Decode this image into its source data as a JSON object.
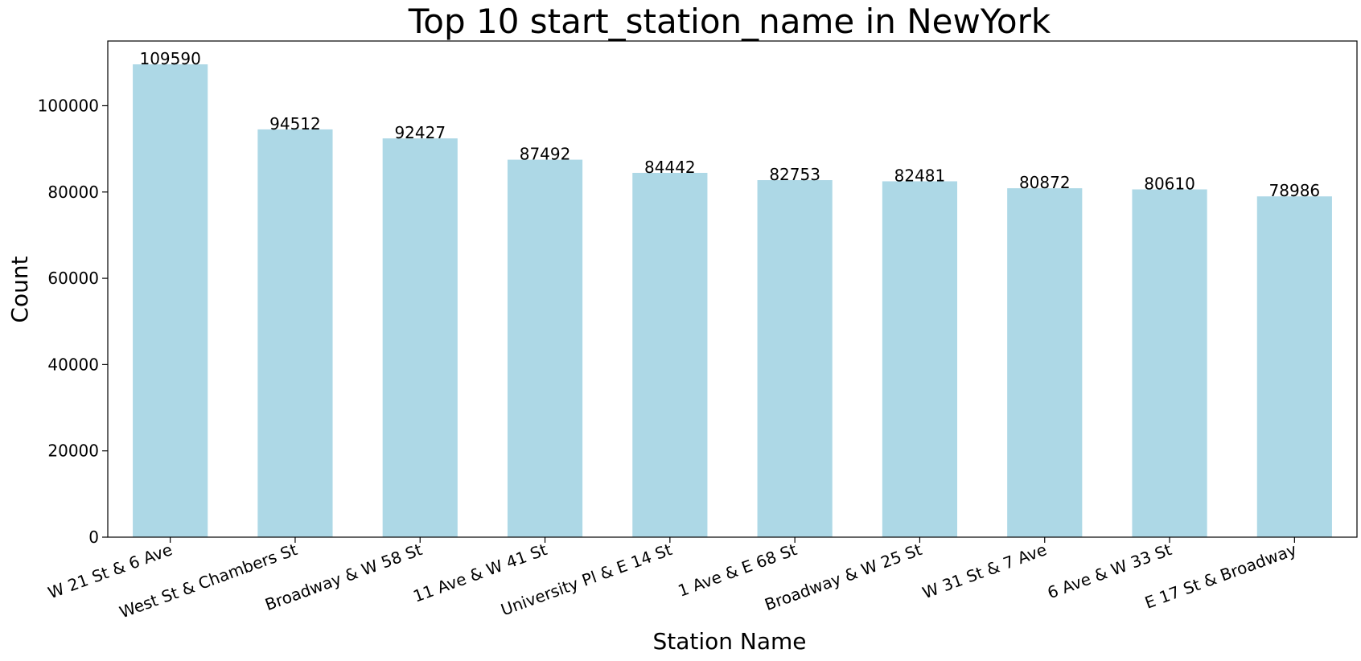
{
  "chart_data": {
    "type": "bar",
    "title": "Top 10 start_station_name in NewYork",
    "xlabel": "Station Name",
    "ylabel": "Count",
    "categories": [
      "W 21 St & 6 Ave",
      "West St & Chambers St",
      "Broadway & W 58 St",
      "11 Ave & W 41 St",
      "University Pl & E 14 St",
      "1 Ave & E 68 St",
      "Broadway & W 25 St",
      "W 31 St & 7 Ave",
      "6 Ave & W 33 St",
      "E 17 St & Broadway"
    ],
    "values": [
      109590,
      94512,
      92427,
      87492,
      84442,
      82753,
      82481,
      80872,
      80610,
      78986
    ],
    "data_labels": [
      "109590",
      "94512",
      "92427",
      "87492",
      "84442",
      "82753",
      "82481",
      "80872",
      "80610",
      "78986"
    ],
    "ylim": [
      0,
      115000
    ],
    "yticks": [
      0,
      20000,
      40000,
      60000,
      80000,
      100000
    ],
    "ytick_labels": [
      "0",
      "20000",
      "40000",
      "60000",
      "80000",
      "100000"
    ],
    "grid": false,
    "bar_color": "#add8e6"
  }
}
